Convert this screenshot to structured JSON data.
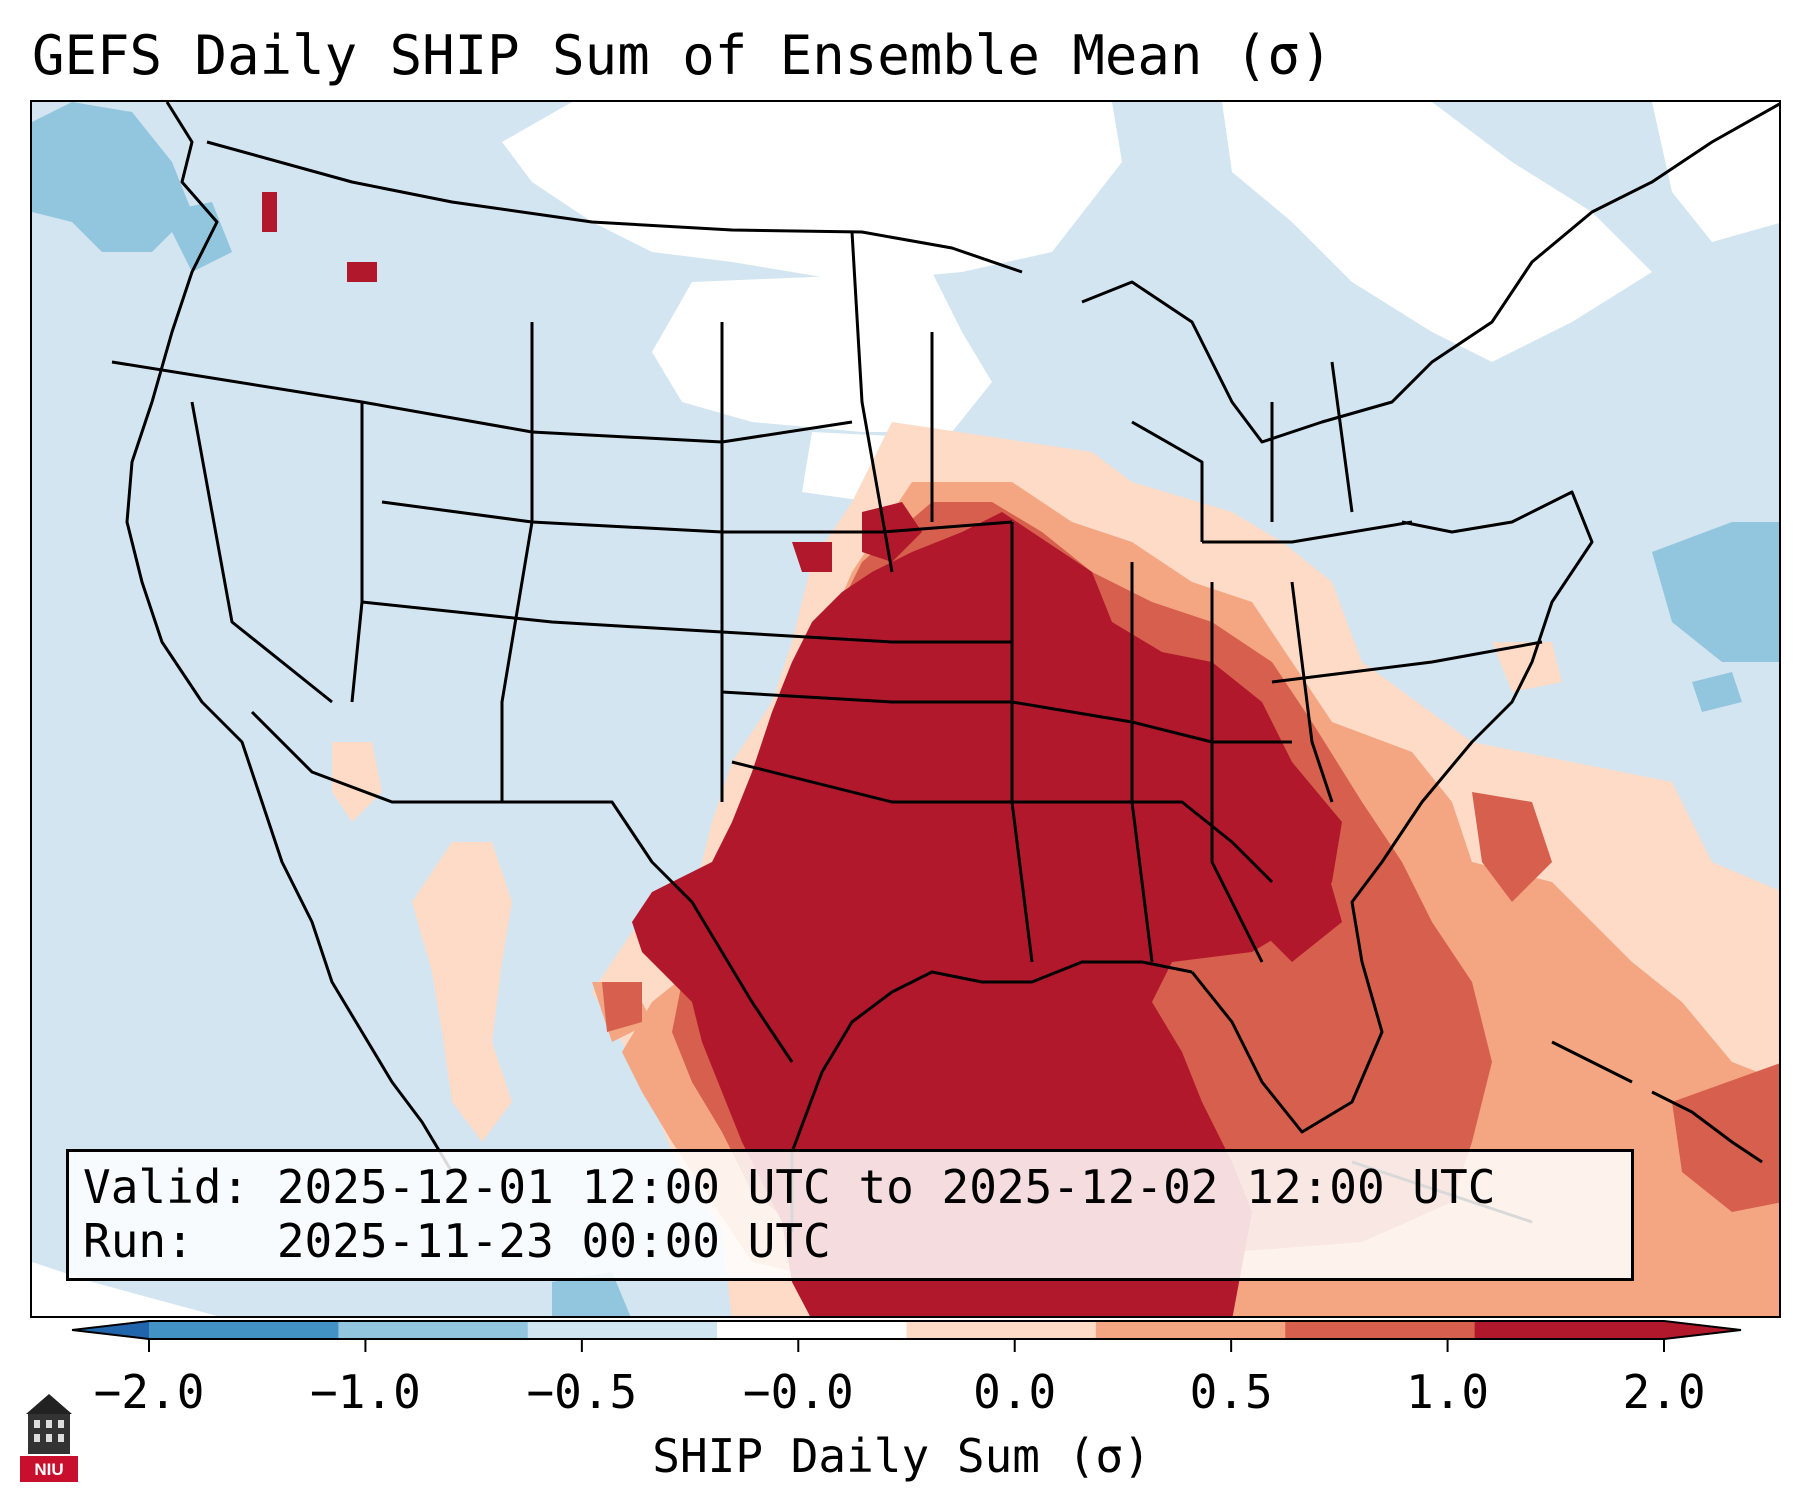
{
  "title": "GEFS Daily SHIP Sum of Ensemble Mean (σ)",
  "info": {
    "valid_line": "Valid: 2025-12-01 12:00 UTC to 2025-12-02 12:00 UTC",
    "run_line": "Run:   2025-11-23 00:00 UTC"
  },
  "colorbar": {
    "label": "SHIP Daily Sum (σ)",
    "ticks": [
      "−2.0",
      "−1.0",
      "−0.5",
      "−0.0",
      "0.0",
      "0.5",
      "1.0",
      "2.0"
    ],
    "bins": [
      "#4292c6",
      "#92c5de",
      "#d1e5f0",
      "#ffffff",
      "#fddbc7",
      "#f4a582",
      "#d6604d",
      "#b2182b"
    ],
    "extend_low_color": "#2166ac",
    "extend_high_color": "#b2182b"
  },
  "map": {
    "projection": "Lambert Conformal, North America",
    "field_palette": {
      "neg_strong": "#92c5de",
      "neg_weak": "#d2e5f1",
      "neutral": "#ffffff",
      "pos_weak": "#fddbc7",
      "pos_mid": "#f4a582",
      "pos_strong": "#d6604d",
      "pos_max": "#b2182b"
    }
  },
  "logo": {
    "text": "NIU",
    "icon": "university-tower-logo-icon"
  }
}
